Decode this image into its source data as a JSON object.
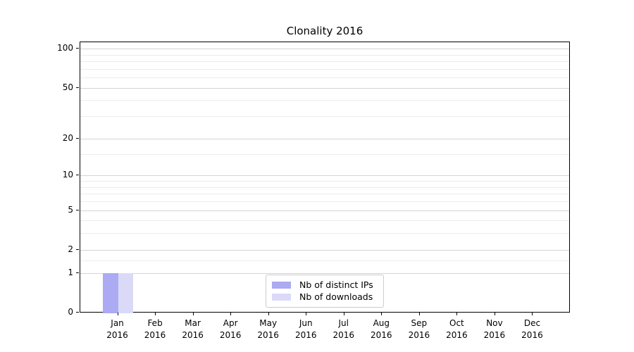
{
  "chart_data": {
    "type": "bar",
    "title": "Clonality 2016",
    "x": {
      "months": [
        "Jan",
        "Feb",
        "Mar",
        "Apr",
        "May",
        "Jun",
        "Jul",
        "Aug",
        "Sep",
        "Oct",
        "Nov",
        "Dec"
      ],
      "year": "2016"
    },
    "series": [
      {
        "name": "Nb of distinct IPs",
        "color": "#abaaf2",
        "values": [
          1,
          0,
          0,
          0,
          0,
          0,
          0,
          0,
          0,
          0,
          0,
          0
        ]
      },
      {
        "name": "Nb of downloads",
        "color": "#dadaf8",
        "values": [
          1,
          0,
          0,
          0,
          0,
          0,
          0,
          0,
          0,
          0,
          0,
          0
        ]
      }
    ],
    "y_axis": {
      "scale": "log1p",
      "major_ticks": [
        0,
        1,
        2,
        5,
        10,
        20,
        50,
        100
      ],
      "minor_gridlines": [
        1.5,
        3,
        4,
        6,
        7,
        8,
        9,
        15,
        30,
        40,
        60,
        70,
        80,
        90
      ],
      "top_value": 115
    },
    "legend": {
      "position": "lower center"
    },
    "grid": {
      "major_color": "#d4d4d4",
      "minor_color": "#ececec"
    }
  }
}
